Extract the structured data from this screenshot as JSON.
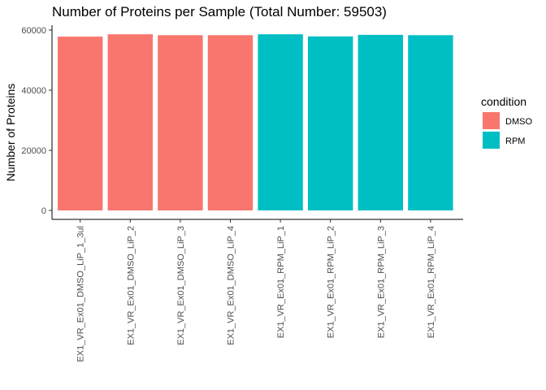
{
  "chart_data": {
    "type": "bar",
    "title": "Number of Proteins per Sample (Total Number: 59503)",
    "xlabel": "",
    "ylabel": "Number of Proteins",
    "ylim": [
      0,
      60000
    ],
    "yticks": [
      0,
      20000,
      40000,
      60000
    ],
    "yticks_labels": [
      "0",
      "20000",
      "40000",
      "60000"
    ],
    "grid": false,
    "legend_position": "right",
    "legend_title": "condition",
    "categories": [
      "EX1_VR_Ex01_DMSO_LiP_1_3ul",
      "EX1_VR_Ex01_DMSO_LiP_2",
      "EX1_VR_Ex01_DMSO_LiP_3",
      "EX1_VR_Ex01_DMSO_LiP_4",
      "EX1_VR_Ex01_RPM_LiP_1",
      "EX1_VR_Ex01_RPM_LiP_2",
      "EX1_VR_Ex01_RPM_LiP_3",
      "EX1_VR_Ex01_RPM_LiP_4"
    ],
    "values": [
      57800,
      58600,
      58300,
      58300,
      58600,
      57900,
      58400,
      58300
    ],
    "condition": [
      "DMSO",
      "DMSO",
      "DMSO",
      "DMSO",
      "RPM",
      "RPM",
      "RPM",
      "RPM"
    ],
    "legend": [
      {
        "name": "DMSO",
        "color": "#F8766D"
      },
      {
        "name": "RPM",
        "color": "#00BFC4"
      }
    ]
  }
}
